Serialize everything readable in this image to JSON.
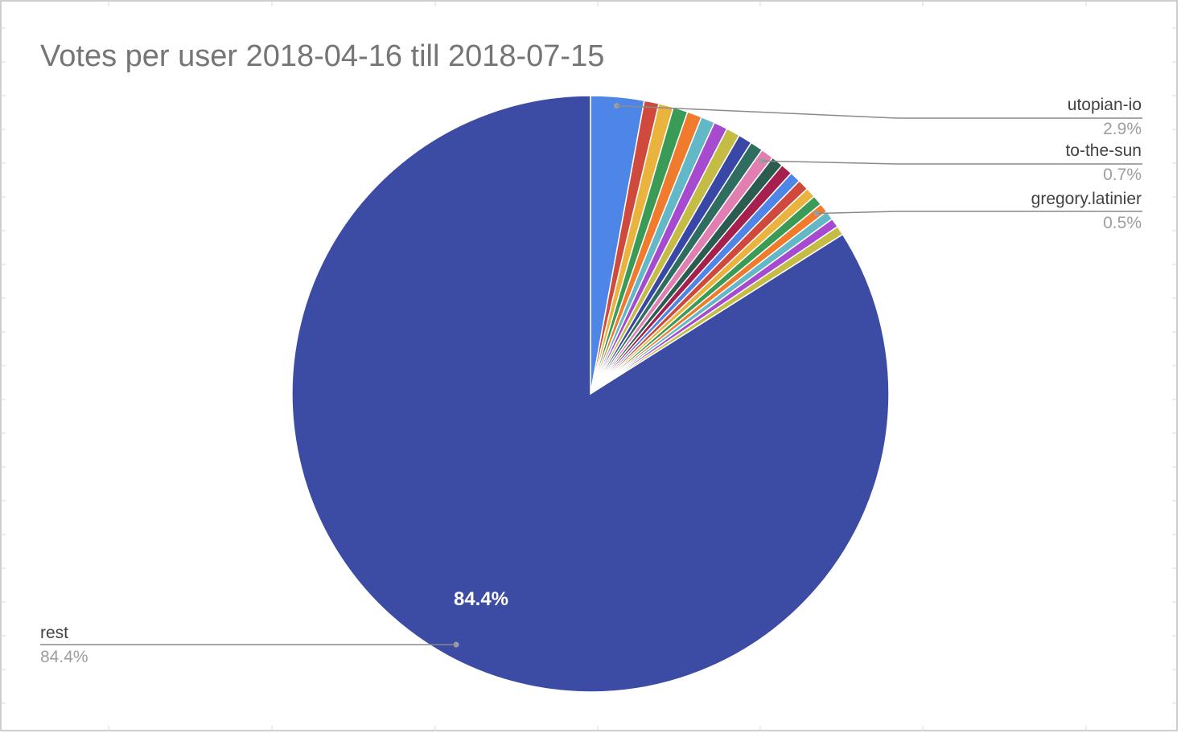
{
  "chart_data": {
    "type": "pie",
    "title": "Votes per user 2018-04-16 till 2018-07-15",
    "slices": [
      {
        "label": "utopian-io",
        "value": 2.9,
        "color": "#4e86e8"
      },
      {
        "label": "",
        "value": 0.8,
        "color": "#cf4a3c"
      },
      {
        "label": "",
        "value": 0.8,
        "color": "#eab33d"
      },
      {
        "label": "",
        "value": 0.8,
        "color": "#3a9b57"
      },
      {
        "label": "",
        "value": 0.8,
        "color": "#f07b2d"
      },
      {
        "label": "",
        "value": 0.75,
        "color": "#63b8c8"
      },
      {
        "label": "",
        "value": 0.75,
        "color": "#a64bd0"
      },
      {
        "label": "",
        "value": 0.75,
        "color": "#c4bc45"
      },
      {
        "label": "",
        "value": 0.75,
        "color": "#3947a6"
      },
      {
        "label": "",
        "value": 0.7,
        "color": "#2e6d60"
      },
      {
        "label": "to-the-sun",
        "value": 0.7,
        "color": "#e17fb2"
      },
      {
        "label": "",
        "value": 0.65,
        "color": "#2b5c50"
      },
      {
        "label": "",
        "value": 0.65,
        "color": "#a6204d"
      },
      {
        "label": "",
        "value": 0.6,
        "color": "#4e86e8"
      },
      {
        "label": "",
        "value": 0.6,
        "color": "#cf4a3c"
      },
      {
        "label": "",
        "value": 0.55,
        "color": "#eab33d"
      },
      {
        "label": "",
        "value": 0.55,
        "color": "#3a9b57"
      },
      {
        "label": "gregory.latinier",
        "value": 0.5,
        "color": "#f07b2d"
      },
      {
        "label": "",
        "value": 0.5,
        "color": "#63b8c8"
      },
      {
        "label": "",
        "value": 0.5,
        "color": "#a64bd0"
      },
      {
        "label": "",
        "value": 0.5,
        "color": "#c4bc45"
      },
      {
        "label": "rest",
        "value": 84.4,
        "color": "#3c4ba4"
      }
    ],
    "callouts": [
      {
        "label": "utopian-io",
        "pct": "2.9%"
      },
      {
        "label": "to-the-sun",
        "pct": "0.7%"
      },
      {
        "label": "gregory.latinier",
        "pct": "0.5%"
      },
      {
        "label": "rest",
        "pct": "84.4%"
      }
    ],
    "inner_label": "84.4%"
  }
}
